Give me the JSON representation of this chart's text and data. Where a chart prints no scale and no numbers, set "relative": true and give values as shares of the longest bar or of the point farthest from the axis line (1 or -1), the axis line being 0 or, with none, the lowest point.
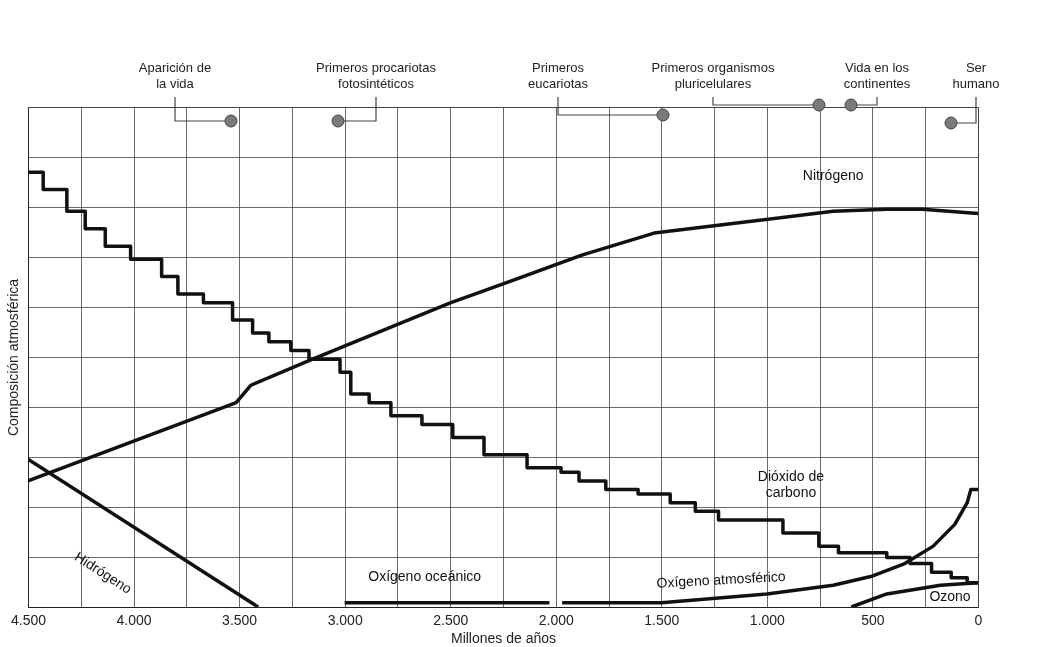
{
  "chart_data": {
    "type": "line",
    "xlabel": "Millones de años",
    "ylabel": "Composición atmosférica",
    "relative": true,
    "grid": true,
    "xlim": [
      4500,
      0
    ],
    "xticks": [
      {
        "value": 4500,
        "label": "4.500"
      },
      {
        "value": 4250,
        "label": null
      },
      {
        "value": 4000,
        "label": "4.000"
      },
      {
        "value": 3750,
        "label": null
      },
      {
        "value": 3500,
        "label": "3.500"
      },
      {
        "value": 3250,
        "label": null
      },
      {
        "value": 3000,
        "label": "3.000"
      },
      {
        "value": 2750,
        "label": null
      },
      {
        "value": 2500,
        "label": "2.500"
      },
      {
        "value": 2250,
        "label": null
      },
      {
        "value": 2000,
        "label": "2.000"
      },
      {
        "value": 1750,
        "label": null
      },
      {
        "value": 1500,
        "label": "1.500"
      },
      {
        "value": 1250,
        "label": null
      },
      {
        "value": 1000,
        "label": "1.000"
      },
      {
        "value": 750,
        "label": null
      },
      {
        "value": 500,
        "label": "500"
      },
      {
        "value": 250,
        "label": null
      },
      0
    ],
    "series": [
      {
        "name": "Nitrógeno",
        "color": "#111111",
        "x": [
          4500,
          3514,
          3445,
          3152,
          2497,
          2381,
          1873,
          1534,
          1025,
          686,
          432,
          263,
          0
        ],
        "values": [
          0.29,
          0.47,
          0.51,
          0.57,
          0.7,
          0.72,
          0.81,
          0.86,
          0.89,
          0.91,
          0.915,
          0.915,
          0.905
        ]
      },
      {
        "name": "Dióxido de\ncarbono",
        "type": "step",
        "color": "#111111",
        "x": [
          4500,
          4428,
          4316,
          4229,
          4134,
          4014,
          3867,
          3790,
          3669,
          3531,
          3436,
          3359,
          3255,
          3169,
          3022,
          2971,
          2884,
          2781,
          2634,
          2488,
          2340,
          2136,
          1975,
          1890,
          1763,
          1610,
          1458,
          1339,
          1229,
          924,
          754,
          661,
          432,
          322,
          220,
          127,
          51,
          0
        ],
        "values": [
          1.0,
          0.96,
          0.91,
          0.87,
          0.83,
          0.8,
          0.76,
          0.72,
          0.7,
          0.66,
          0.63,
          0.61,
          0.59,
          0.57,
          0.54,
          0.49,
          0.47,
          0.44,
          0.42,
          0.39,
          0.35,
          0.32,
          0.31,
          0.29,
          0.27,
          0.26,
          0.24,
          0.22,
          0.2,
          0.17,
          0.14,
          0.125,
          0.114,
          0.1,
          0.08,
          0.067,
          0.056,
          0.056
        ]
      },
      {
        "name": "Hidrógeno",
        "color": "#111111",
        "x": [
          4500,
          3410
        ],
        "values": [
          0.34,
          0
        ]
      },
      {
        "name": "Oxígeno oceánico",
        "color": "#111111",
        "x": [
          3000,
          2030
        ],
        "values": [
          0.01,
          0.01
        ]
      },
      {
        "name": "Oxígeno atmosférico",
        "color": "#111111",
        "x": [
          1970,
          1500,
          1000,
          686,
          508,
          347,
          212,
          110,
          51,
          34,
          0
        ],
        "values": [
          0.01,
          0.01,
          0.03,
          0.05,
          0.07,
          0.1,
          0.14,
          0.19,
          0.24,
          0.27,
          0.27
        ]
      },
      {
        "name": "Ozono",
        "color": "#111111",
        "x": [
          600,
          432,
          178,
          0
        ],
        "values": [
          0,
          0.03,
          0.05,
          0.056
        ]
      }
    ],
    "annotations": [
      "Aparición de\nla vida",
      "Primeros procariotas\nfotosintéticos",
      "Primeros\neucariotas",
      "Primeros organismos\npluricelulares",
      "Vida en los\ncontinentes",
      "Ser\nhumano"
    ]
  }
}
